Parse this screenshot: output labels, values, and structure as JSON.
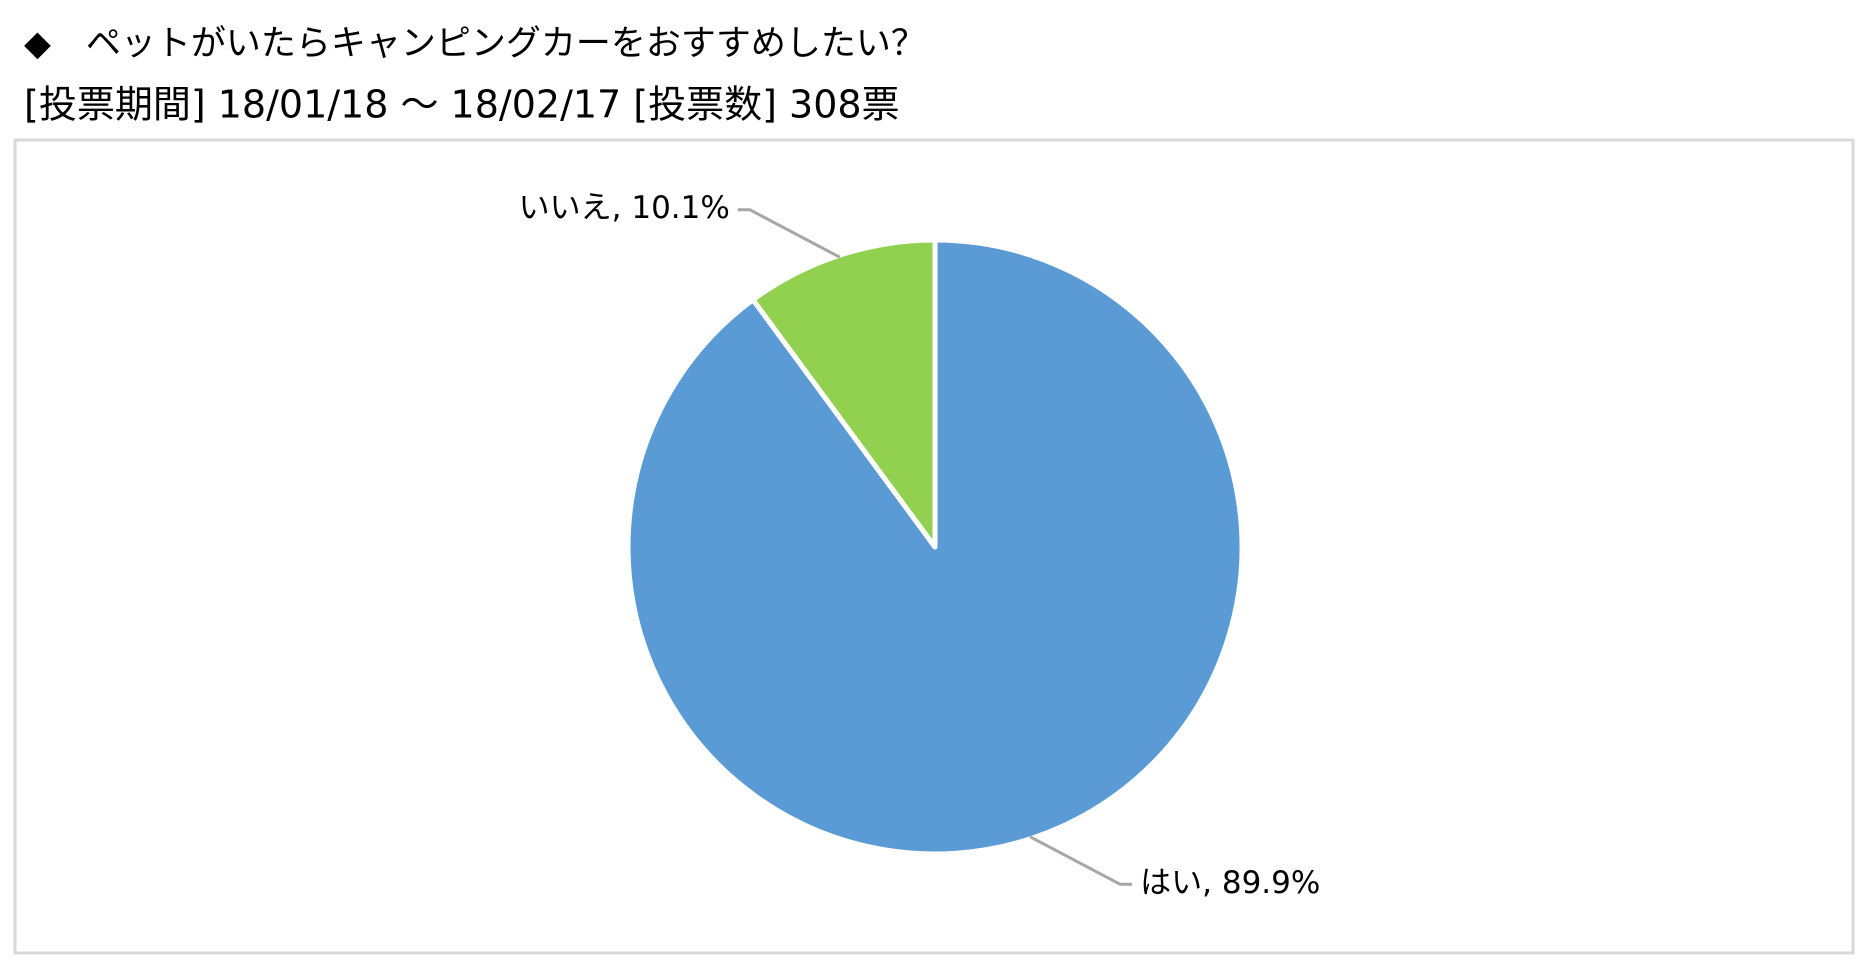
{
  "chart_data": {
    "type": "pie",
    "title": "◆　ペットがいたらキャンピングカーをおすすめしたい？",
    "subtitle": "[投票期間] 18/01/18 ～ 18/02/17 [投票数] 308票",
    "categories": [
      "はい",
      "いいえ"
    ],
    "values": [
      89.9,
      10.1
    ],
    "value_labels": [
      "はい, 89.9%",
      "いいえ, 10.1%"
    ],
    "colors": [
      "#5b9bd5",
      "#92d050"
    ]
  }
}
